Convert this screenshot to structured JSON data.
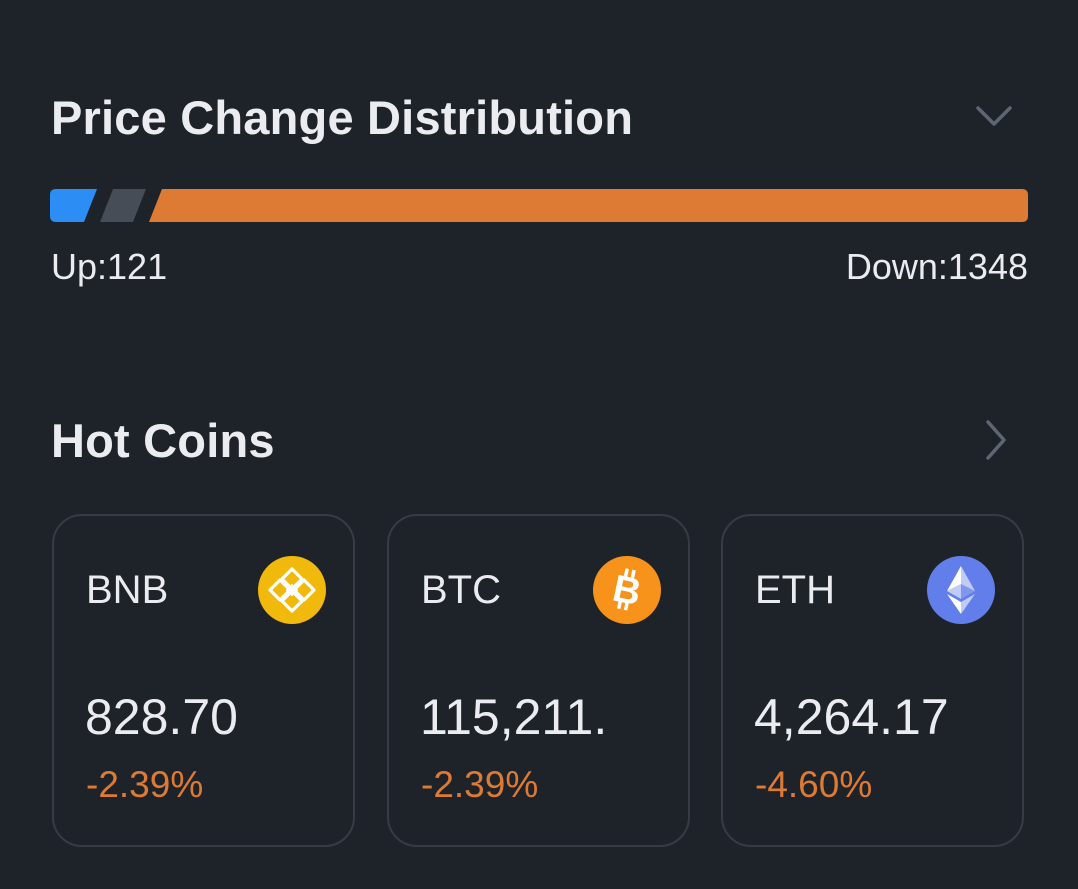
{
  "colors": {
    "background": "#1e2329",
    "up": "#2c8df4",
    "neutral": "#474d57",
    "down": "#dd7a33",
    "text": "#eaecef",
    "card_border": "#363c45"
  },
  "price_change_distribution": {
    "title": "Price Change Distribution",
    "collapse_icon": "chevron-down-icon",
    "up_label": "Up:121",
    "down_label": "Down:1348",
    "up_count": 121,
    "down_count": 1348
  },
  "hot_coins": {
    "title": "Hot Coins",
    "more_icon": "chevron-right-icon",
    "coins": [
      {
        "symbol": "BNB",
        "price": "828.70",
        "change": "-2.39%",
        "icon": "bnb-logo-icon"
      },
      {
        "symbol": "BTC",
        "price": "115,211.",
        "change": "-2.39%",
        "icon": "btc-logo-icon"
      },
      {
        "symbol": "ETH",
        "price": "4,264.17",
        "change": "-4.60%",
        "icon": "eth-logo-icon"
      }
    ]
  }
}
